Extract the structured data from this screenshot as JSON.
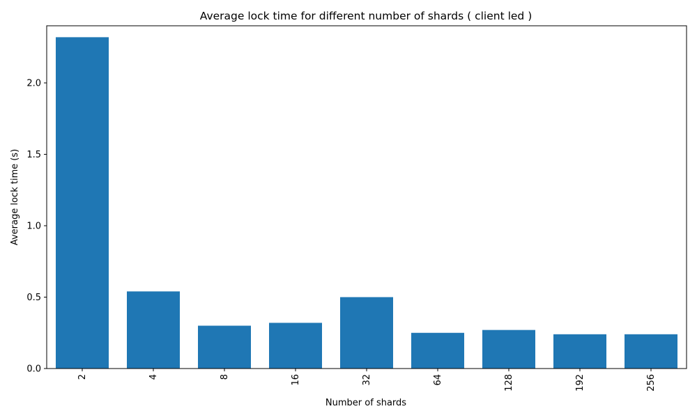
{
  "chart_data": {
    "type": "bar",
    "title": "Average lock time for different number of shards ( client led )",
    "xlabel": "Number of shards",
    "ylabel": "Average lock time (s)",
    "categories": [
      "2",
      "4",
      "8",
      "16",
      "32",
      "64",
      "128",
      "192",
      "256"
    ],
    "values": [
      2.32,
      0.54,
      0.3,
      0.32,
      0.5,
      0.25,
      0.27,
      0.24,
      0.24
    ],
    "ylim": [
      0,
      2.4
    ],
    "yticks": [
      0.0,
      0.5,
      1.0,
      1.5,
      2.0
    ],
    "ytick_labels": [
      "0.0",
      "0.5",
      "1.0",
      "1.5",
      "2.0"
    ],
    "x_tick_rotation": "vertical",
    "bar_color": "#1f77b4",
    "grid": false,
    "legend": "none"
  }
}
